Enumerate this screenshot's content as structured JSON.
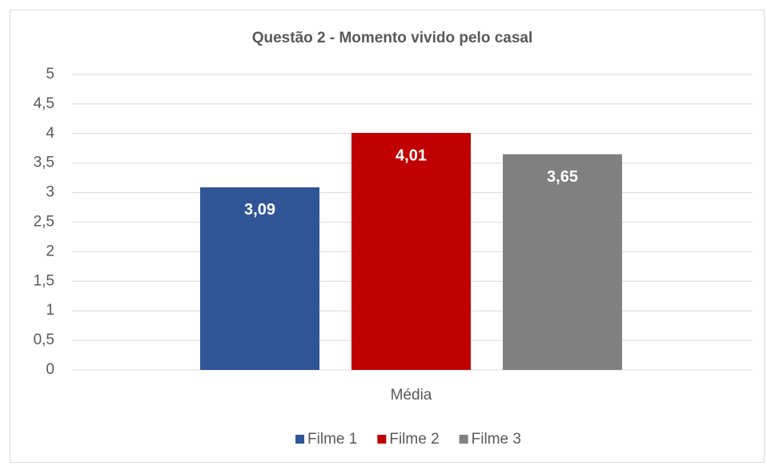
{
  "chart_data": {
    "type": "bar",
    "title": "Questão 2 - Momento vivido pelo casal",
    "categories": [
      "Média"
    ],
    "series": [
      {
        "name": "Filme 1",
        "color": "#2f5597",
        "values": [
          3.09
        ],
        "value_labels": [
          "3,09"
        ]
      },
      {
        "name": "Filme 2",
        "color": "#c00000",
        "values": [
          4.01
        ],
        "value_labels": [
          "4,01"
        ]
      },
      {
        "name": "Filme 3",
        "color": "#808080",
        "values": [
          3.65
        ],
        "value_labels": [
          "3,65"
        ]
      }
    ],
    "ylim": [
      0,
      5
    ],
    "yticks": [
      0,
      {
        "value": 0.5,
        "label": "0,5"
      },
      1,
      {
        "value": 1.5,
        "label": "1,5"
      },
      2,
      {
        "value": 2.5,
        "label": "2,5"
      },
      3,
      {
        "value": 3.5,
        "label": "3,5"
      },
      4,
      {
        "value": 4.5,
        "label": "4,5"
      },
      5
    ],
    "grid": true,
    "legend": "bottom"
  }
}
